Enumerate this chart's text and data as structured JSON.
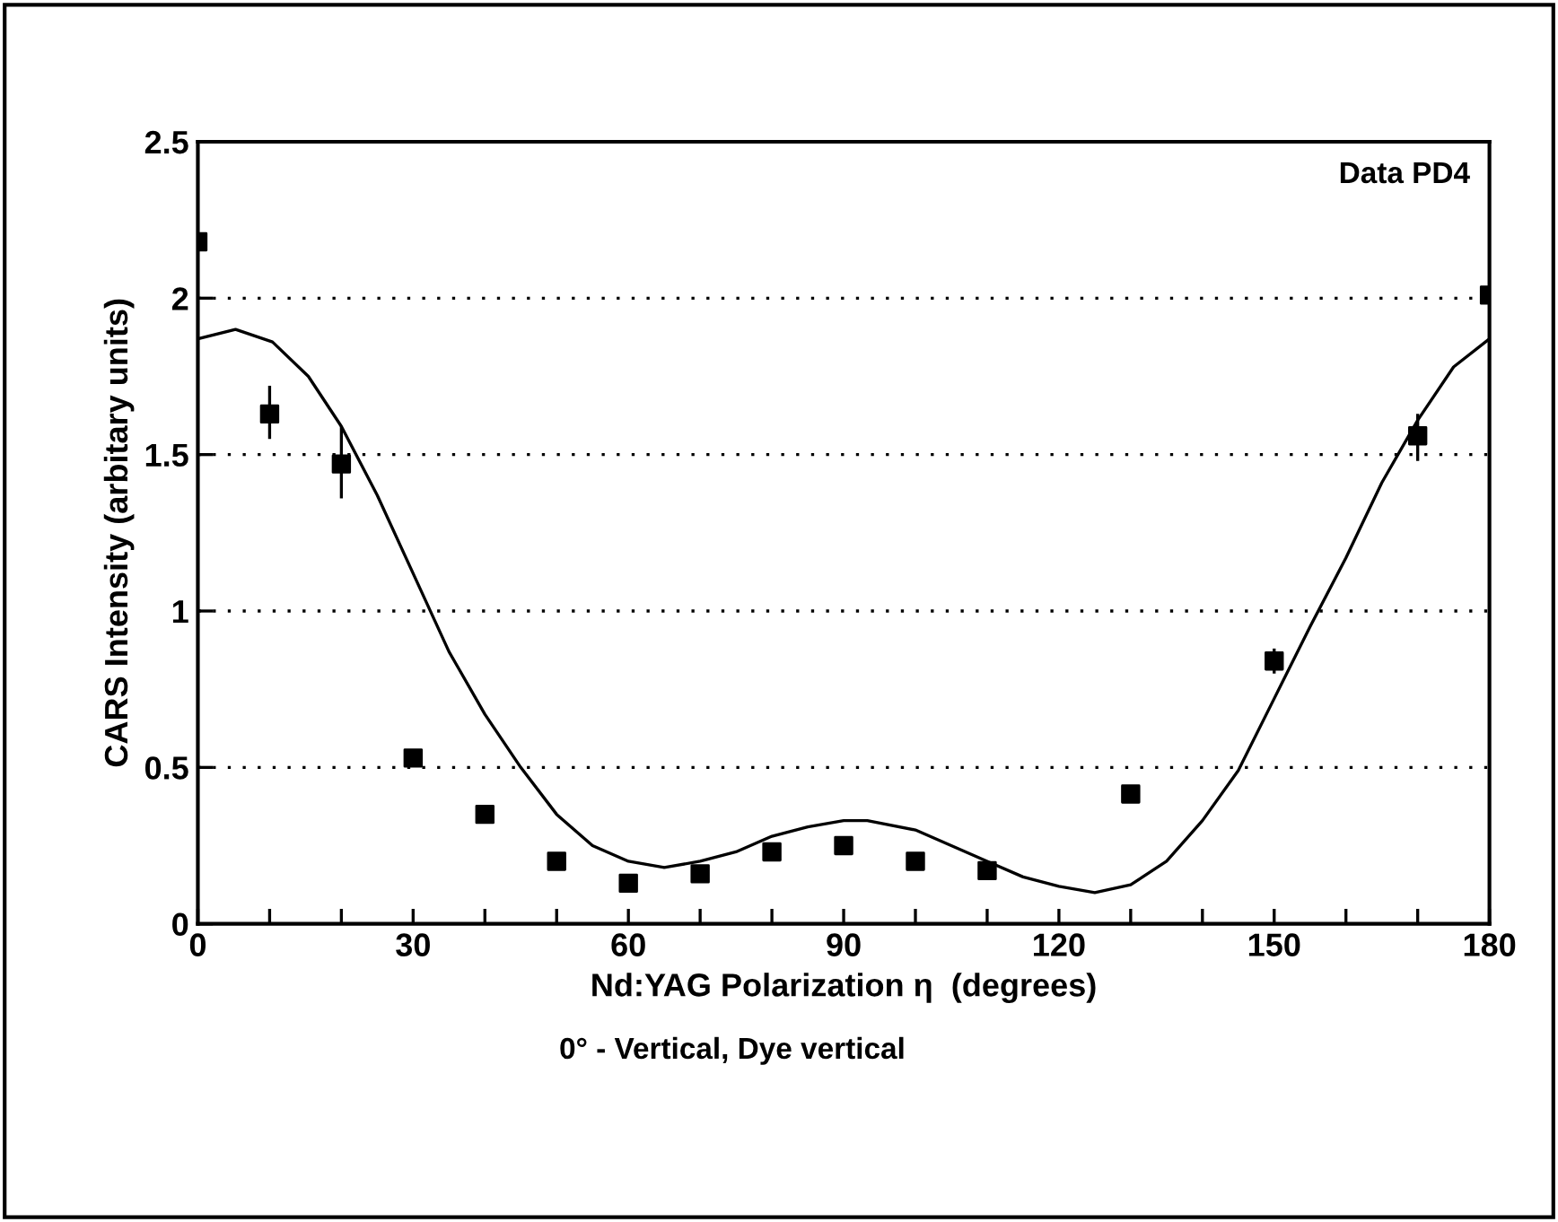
{
  "chart_data": {
    "type": "scatter",
    "xlabel": "Nd:YAG Polarization η  (degrees)",
    "ylabel": "CARS Intensity (arbitary units)",
    "annotations": [
      "Data PD4",
      "0° - Vertical, Dye vertical"
    ],
    "xlim": [
      0,
      180
    ],
    "ylim": [
      0,
      2.5
    ],
    "xticks": [
      0,
      {
        "value": 10,
        "label": null
      },
      {
        "value": 20,
        "label": null
      },
      30,
      {
        "value": 40,
        "label": null
      },
      {
        "value": 50,
        "label": null
      },
      60,
      {
        "value": 70,
        "label": null
      },
      {
        "value": 80,
        "label": null
      },
      90,
      {
        "value": 100,
        "label": null
      },
      {
        "value": 110,
        "label": null
      },
      120,
      {
        "value": 130,
        "label": null
      },
      {
        "value": 140,
        "label": null
      },
      150,
      {
        "value": 160,
        "label": null
      },
      {
        "value": 170,
        "label": null
      },
      180
    ],
    "yticks": [
      0,
      0.5,
      1,
      1.5,
      2,
      2.5
    ],
    "grid": "y",
    "series": [
      {
        "type": "line",
        "color": "#000000",
        "marker": "none",
        "line_style": "solid",
        "x": [
          0,
          5.25,
          10.4,
          15.4,
          20,
          25,
          30,
          35,
          40,
          45,
          50,
          55,
          60,
          65,
          70,
          75,
          80,
          85,
          90,
          93.3,
          100,
          105,
          110,
          115,
          120,
          125,
          130,
          135,
          140,
          145,
          150,
          155,
          160,
          165,
          170,
          175,
          180
        ],
        "values": [
          1.87,
          1.9,
          1.86,
          1.75,
          1.59,
          1.37,
          1.12,
          0.87,
          0.67,
          0.5,
          0.35,
          0.25,
          0.2,
          0.18,
          0.2,
          0.23,
          0.28,
          0.31,
          0.33,
          0.33,
          0.3,
          0.25,
          0.2,
          0.15,
          0.12,
          0.1,
          0.125,
          0.2,
          0.33,
          0.49,
          0.72,
          0.95,
          1.17,
          1.41,
          1.61,
          1.78,
          1.87
        ]
      },
      {
        "color": "#000000",
        "marker": "square",
        "x": [
          0,
          10,
          20,
          30,
          40,
          50,
          60,
          70,
          80,
          90,
          100,
          110,
          130,
          150,
          170,
          180
        ],
        "values": [
          2.18,
          1.63,
          1.47,
          0.53,
          0.35,
          0.2,
          0.13,
          0.16,
          0.23,
          0.25,
          0.2,
          0.17,
          0.415,
          0.84,
          1.56,
          2.01
        ],
        "errors": [
          null,
          [
            1.55,
            1.72
          ],
          [
            1.36,
            1.59
          ],
          null,
          null,
          null,
          null,
          null,
          null,
          null,
          null,
          null,
          null,
          [
            0.8,
            0.88
          ],
          [
            1.48,
            1.63
          ],
          null
        ]
      }
    ]
  }
}
